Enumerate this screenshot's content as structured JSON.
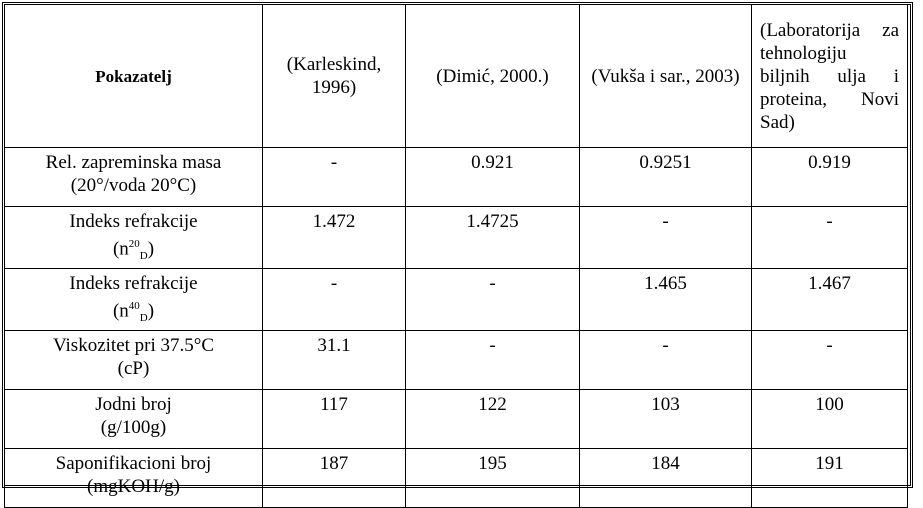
{
  "table": {
    "header": [
      "Pokazatelj",
      "(Karleskind, 1996)",
      "(Dimić, 2000.)",
      "(Vukša i sar., 2003)",
      "(Laboratorija za tehnologiju biljnih ulja i proteina, Novi Sad)"
    ],
    "rows": [
      {
        "label": [
          "Rel. zapreminska masa",
          "(20°/voda 20°C)"
        ],
        "values": [
          "-",
          "0.921",
          "0.9251",
          "0.919"
        ]
      },
      {
        "label": [
          "Indeks refrakcije",
          {
            "open": "(n",
            "sup": "20",
            "sub": "D",
            "close": ")"
          }
        ],
        "values": [
          "1.472",
          "1.4725",
          "-",
          "-"
        ]
      },
      {
        "label": [
          "Indeks refrakcije",
          {
            "open": "(n",
            "sup": "40",
            "sub": "D",
            "close": ")"
          }
        ],
        "values": [
          "-",
          "-",
          "1.465",
          "1.467"
        ]
      },
      {
        "label": [
          "Viskozitet pri 37.5°C",
          "(cP)"
        ],
        "values": [
          "31.1",
          "-",
          "-",
          "-"
        ]
      },
      {
        "label": [
          "Jodni broj",
          "(g/100g)"
        ],
        "values": [
          "117",
          "122",
          "103",
          "100"
        ]
      },
      {
        "label": [
          "Saponifikacioni broj",
          "(mgKOH/g)"
        ],
        "values": [
          "187",
          "195",
          "184",
          "191"
        ]
      }
    ]
  }
}
